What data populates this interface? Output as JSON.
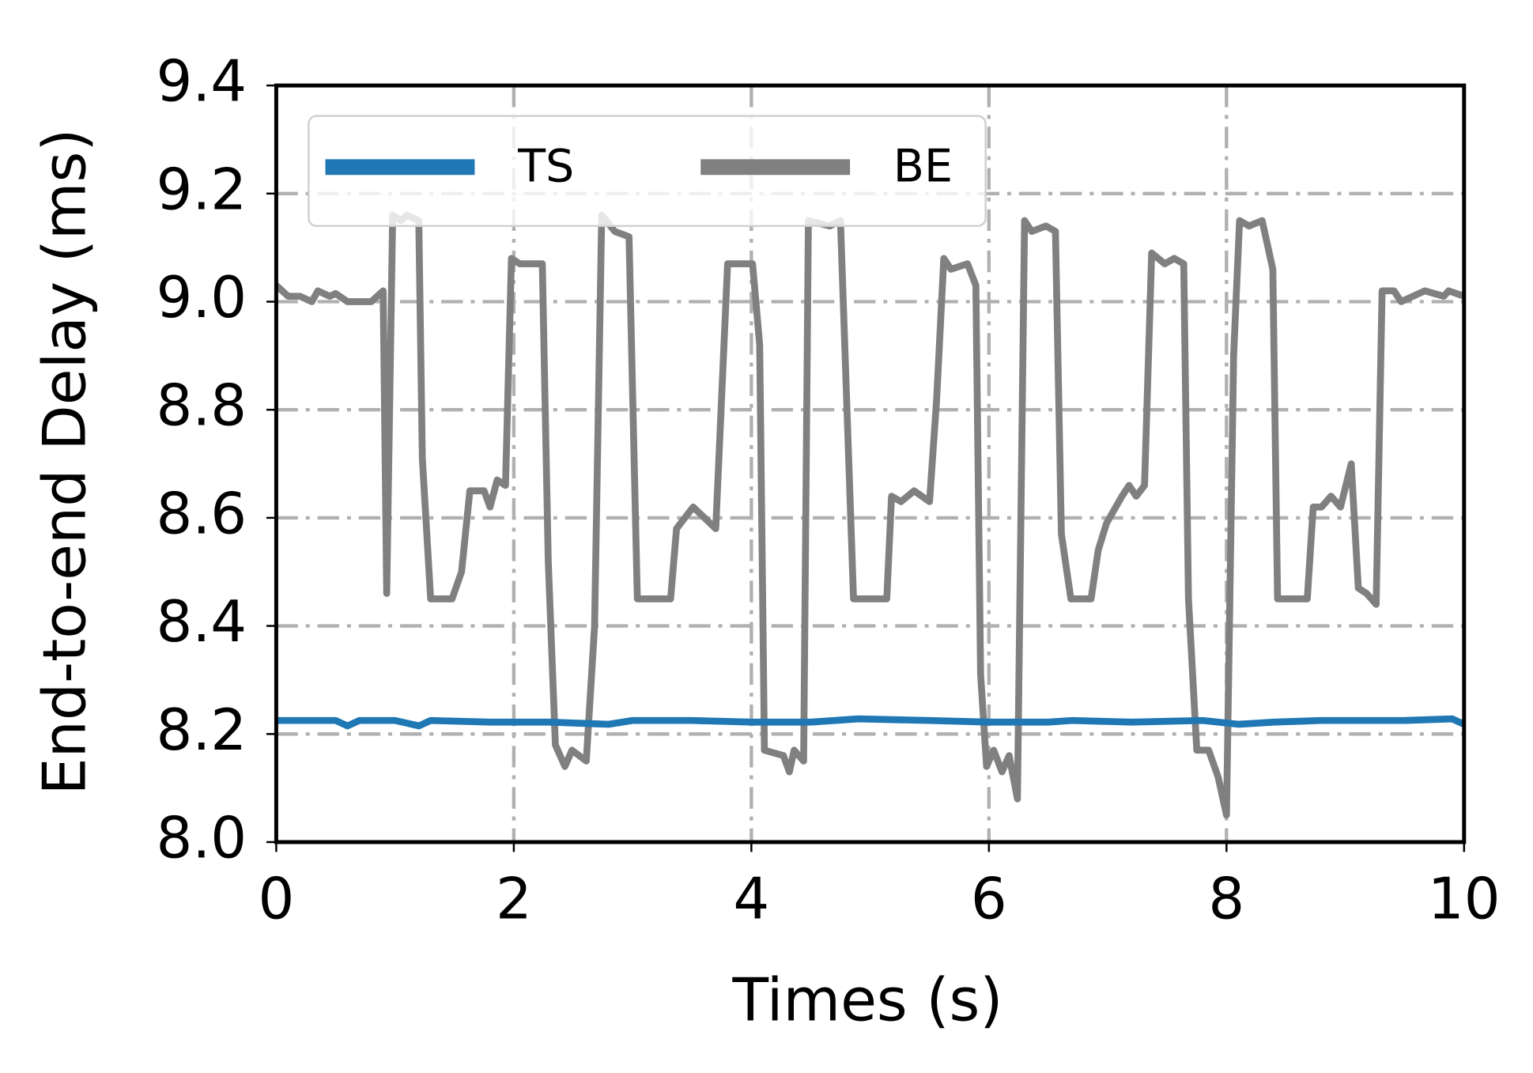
{
  "chart_data": {
    "type": "line",
    "xlabel": "Times (s)",
    "ylabel": "End-to-end Delay (ms)",
    "xlim": [
      0,
      10
    ],
    "ylim": [
      8.0,
      9.4
    ],
    "xticks": [
      0,
      2,
      4,
      6,
      8,
      10
    ],
    "yticks": [
      {
        "value": 8.0,
        "label": "8.0"
      },
      8.2,
      8.4,
      8.6,
      8.8,
      {
        "value": 9.0,
        "label": "9.0"
      },
      9.2,
      9.4
    ],
    "grid": true,
    "legend": "upper left",
    "series": [
      {
        "name": "TS",
        "color": "#1f77b4",
        "x": [
          0,
          0.5,
          0.6,
          0.7,
          1.0,
          1.2,
          1.3,
          1.8,
          2.3,
          2.8,
          3.0,
          3.5,
          4.0,
          4.5,
          4.9,
          5.5,
          6.0,
          6.5,
          6.7,
          7.2,
          7.8,
          8.1,
          8.4,
          8.8,
          9.5,
          9.9,
          10
        ],
        "values": [
          8.225,
          8.225,
          8.215,
          8.225,
          8.225,
          8.215,
          8.225,
          8.222,
          8.222,
          8.218,
          8.225,
          8.225,
          8.222,
          8.222,
          8.228,
          8.225,
          8.222,
          8.222,
          8.225,
          8.222,
          8.225,
          8.218,
          8.222,
          8.225,
          8.225,
          8.228,
          8.218
        ]
      },
      {
        "name": "BE",
        "color": "#808080",
        "x": [
          0,
          0.1,
          0.2,
          0.3,
          0.35,
          0.45,
          0.5,
          0.6,
          0.7,
          0.8,
          0.9,
          0.93,
          0.98,
          1.05,
          1.1,
          1.2,
          1.23,
          1.3,
          1.48,
          1.56,
          1.63,
          1.75,
          1.8,
          1.86,
          1.93,
          1.98,
          2.05,
          2.24,
          2.29,
          2.35,
          2.43,
          2.49,
          2.61,
          2.68,
          2.74,
          2.85,
          2.97,
          3.04,
          3.32,
          3.37,
          3.51,
          3.7,
          3.8,
          4.01,
          4.07,
          4.11,
          4.27,
          4.32,
          4.36,
          4.44,
          4.48,
          4.66,
          4.75,
          4.86,
          5.14,
          5.18,
          5.26,
          5.37,
          5.5,
          5.56,
          5.62,
          5.68,
          5.82,
          5.89,
          5.93,
          5.98,
          6.04,
          6.11,
          6.17,
          6.24,
          6.3,
          6.36,
          6.48,
          6.56,
          6.61,
          6.69,
          6.86,
          6.92,
          6.99,
          7.12,
          7.18,
          7.24,
          7.31,
          7.37,
          7.48,
          7.56,
          7.64,
          7.68,
          7.75,
          7.85,
          7.93,
          8.0,
          8.06,
          8.11,
          8.19,
          8.3,
          8.39,
          8.43,
          8.68,
          8.73,
          8.8,
          8.88,
          8.96,
          9.05,
          9.11,
          9.18,
          9.26,
          9.31,
          9.41,
          9.47,
          9.67,
          9.83,
          9.87,
          10
        ],
        "values": [
          9.03,
          9.01,
          9.01,
          9.0,
          9.02,
          9.01,
          9.015,
          9.0,
          9.0,
          9.0,
          9.02,
          8.46,
          9.16,
          9.15,
          9.16,
          9.15,
          8.71,
          8.45,
          8.45,
          8.5,
          8.65,
          8.65,
          8.62,
          8.67,
          8.66,
          9.08,
          9.07,
          9.07,
          8.52,
          8.18,
          8.14,
          8.17,
          8.15,
          8.4,
          9.16,
          9.13,
          9.12,
          8.45,
          8.45,
          8.58,
          8.62,
          8.58,
          9.07,
          9.07,
          8.92,
          8.17,
          8.16,
          8.13,
          8.17,
          8.15,
          9.15,
          9.14,
          9.15,
          8.45,
          8.45,
          8.64,
          8.63,
          8.65,
          8.63,
          8.82,
          9.08,
          9.06,
          9.07,
          9.03,
          8.31,
          8.14,
          8.17,
          8.13,
          8.16,
          8.08,
          9.15,
          9.13,
          9.14,
          9.13,
          8.57,
          8.45,
          8.45,
          8.54,
          8.59,
          8.64,
          8.66,
          8.64,
          8.66,
          9.09,
          9.07,
          9.08,
          9.07,
          8.45,
          8.17,
          8.17,
          8.12,
          8.05,
          8.9,
          9.15,
          9.14,
          9.15,
          9.06,
          8.45,
          8.45,
          8.62,
          8.62,
          8.64,
          8.62,
          8.7,
          8.47,
          8.46,
          8.44,
          9.02,
          9.02,
          9.0,
          9.02,
          9.01,
          9.02,
          9.01
        ]
      }
    ]
  }
}
